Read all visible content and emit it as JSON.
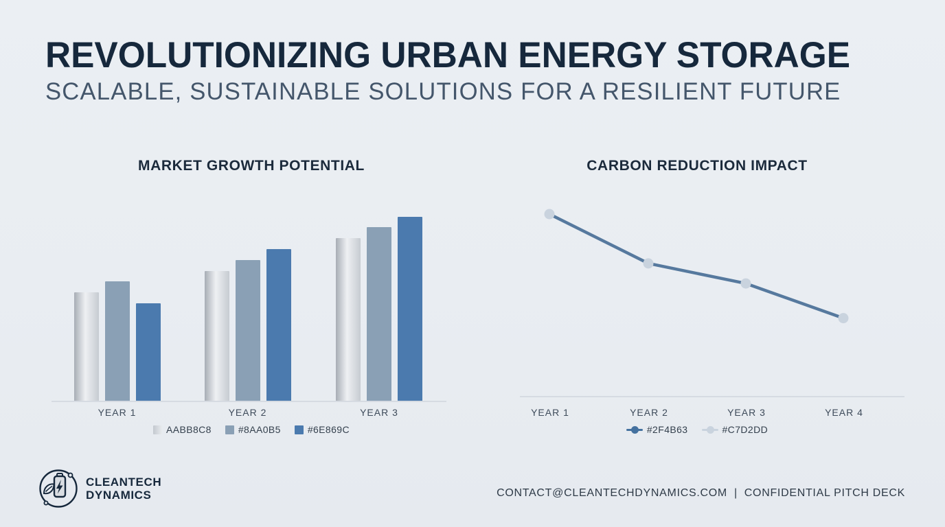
{
  "slide": {
    "title": "REVOLUTIONIZING URBAN ENERGY STORAGE",
    "subtitle": "SCALABLE, SUSTAINABLE SOLUTIONS FOR A RESILIENT FUTURE",
    "colors": {
      "background": "#e9edf2",
      "title": "#16283c",
      "subtitle": "#44566b",
      "axis": "#d6dbe2",
      "accent_blue": "#4b7aae"
    }
  },
  "brand": {
    "line1": "CLEANTECH",
    "line2": "DYNAMICS",
    "icon": "battery-leaf-bolt-circle-logo"
  },
  "footer": {
    "contact": "CONTACT@CLEANTECHDYNAMICS.COM",
    "separator": "|",
    "note": "CONFIDENTIAL PITCH DECK"
  },
  "chart_data": [
    {
      "id": "market-growth",
      "type": "bar",
      "title": "MARKET GROWTH POTENTIAL",
      "categories": [
        "YEAR 1",
        "YEAR 2",
        "YEAR 3"
      ],
      "series": [
        {
          "name": "AABB8C8",
          "color_left": "#a7adb5",
          "color_mid": "#eef0f3",
          "color_right": "#c6cbd1",
          "swatch_left": "#c3c8cf",
          "swatch_right": "#e8ebee",
          "values": [
            50,
            60,
            75
          ]
        },
        {
          "name": "#8AA0B5",
          "color": "#8aa0b5",
          "values": [
            55,
            65,
            80
          ]
        },
        {
          "name": "#6E869C",
          "color": "#4b7aae",
          "values": [
            45,
            70,
            85
          ]
        }
      ],
      "ylim": [
        0,
        95
      ],
      "grid": false,
      "legend_position": "bottom"
    },
    {
      "id": "carbon-reduction",
      "type": "line",
      "title": "CARBON REDUCTION IMPACT",
      "x": [
        "YEAR 1",
        "YEAR 2",
        "YEAR 3",
        "YEAR 4"
      ],
      "series": [
        {
          "name": "#2F4B63",
          "line_color": "#56799e",
          "marker_color": "#c9d3de",
          "values": [
            100,
            73,
            62,
            43
          ]
        }
      ],
      "legend": [
        {
          "label": "#2F4B63",
          "color": "#44719f"
        },
        {
          "label": "#C7D2DD",
          "color": "#c9d3de"
        }
      ],
      "ylim": [
        0,
        110
      ],
      "grid": false,
      "legend_position": "bottom"
    }
  ]
}
